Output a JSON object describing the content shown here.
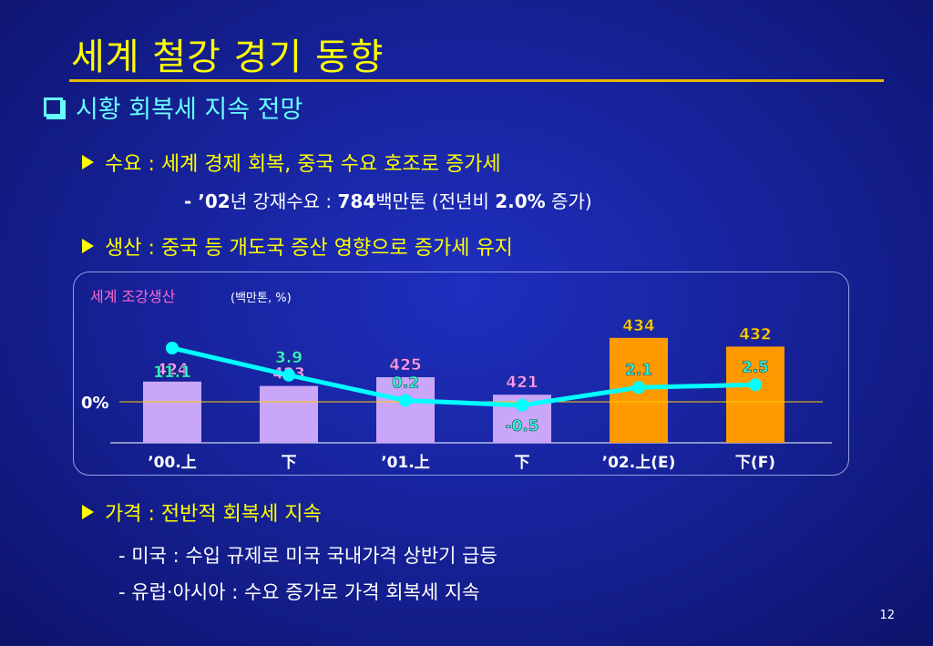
{
  "slide": {
    "title": "세계 철강 경기 동향",
    "heading": "시황 회복세 지속 전망",
    "demand": {
      "label": "수요 :  세계 경제 회복, 중국 수요 호조로 증가세",
      "detail_prefix": "- ’",
      "detail_year": "02",
      "detail_mid": "년 강재수요 : ",
      "detail_value": "784",
      "detail_unit": "백만톤 (",
      "detail_tail": "전년비 ",
      "detail_pct": "2.0%",
      "detail_end": " 증가)"
    },
    "production": {
      "label": "생산 :  중국 등 개도국 증산 영향으로 증가세 유지"
    },
    "price": {
      "label": "가격 :  전반적 회복세 지속",
      "line1": "- 미국 :  수입 규제로 미국 국내가격 상반기 급등",
      "line2": "- 유럽·아시아  :  수요 증가로 가격 회복세 지속"
    },
    "page_number": "12"
  },
  "chart_data": {
    "type": "bar",
    "title": "세계 조강생산",
    "unit": "(백만톤, %)",
    "zero_label": "0%",
    "categories": [
      "’00.上",
      "下",
      "’01.上",
      "下",
      "’02.上(E)",
      "下(F)"
    ],
    "series": [
      {
        "values": [
          424,
          423,
          425,
          421,
          434,
          432
        ],
        "type": "bar"
      },
      {
        "values": [
          11.1,
          3.9,
          0.2,
          -0.5,
          2.1,
          2.5
        ],
        "type": "line"
      }
    ],
    "bar_colors": [
      "#c9a6f7",
      "#c9a6f7",
      "#c9a6f7",
      "#c9a6f7",
      "#ff9900",
      "#ff9900"
    ],
    "colors": {
      "bar_label_actual": "#ff99ff",
      "bar_label_forecast": "#ffcc00",
      "line": "#00ffff",
      "line_label": "#33ffcc",
      "title": "#ff66cc",
      "zero_line": "#ffcc00"
    }
  }
}
